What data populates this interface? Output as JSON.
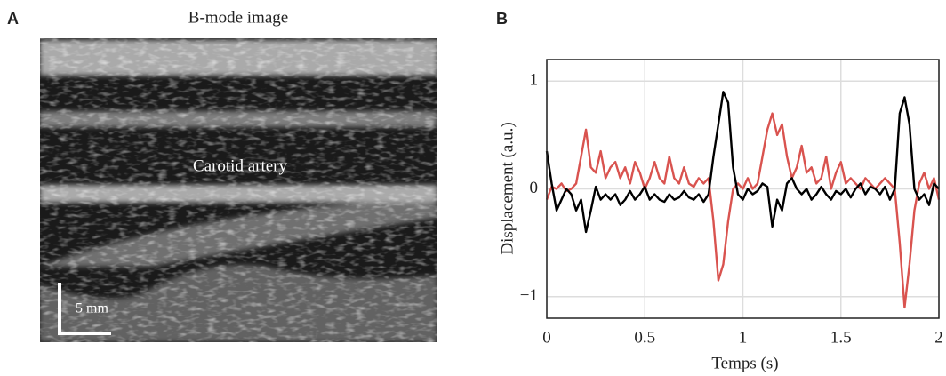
{
  "image_panel": {
    "label": "A",
    "title": "B-mode image",
    "annotation": "Carotid artery",
    "scale_bar": "5 mm"
  },
  "chart_data": {
    "type": "line",
    "panel_label": "B",
    "xlabel": "Temps (s)",
    "ylabel": "Displacement (a.u.)",
    "x": [
      0,
      0.025,
      0.05,
      0.075,
      0.1,
      0.125,
      0.15,
      0.175,
      0.2,
      0.225,
      0.25,
      0.275,
      0.3,
      0.325,
      0.35,
      0.375,
      0.4,
      0.425,
      0.45,
      0.475,
      0.5,
      0.525,
      0.55,
      0.575,
      0.6,
      0.625,
      0.65,
      0.675,
      0.7,
      0.725,
      0.75,
      0.775,
      0.8,
      0.825,
      0.85,
      0.875,
      0.9,
      0.925,
      0.95,
      0.975,
      1,
      1.025,
      1.05,
      1.075,
      1.1,
      1.125,
      1.15,
      1.175,
      1.2,
      1.225,
      1.25,
      1.275,
      1.3,
      1.325,
      1.35,
      1.375,
      1.4,
      1.425,
      1.45,
      1.475,
      1.5,
      1.525,
      1.55,
      1.575,
      1.6,
      1.625,
      1.65,
      1.675,
      1.7,
      1.725,
      1.75,
      1.775,
      1.8,
      1.825,
      1.85,
      1.875,
      1.9,
      1.925,
      1.95,
      1.975,
      2
    ],
    "series": [
      {
        "color": "#000000",
        "values": [
          0.35,
          0.05,
          -0.2,
          -0.1,
          0,
          -0.05,
          -0.2,
          -0.1,
          -0.4,
          -0.2,
          0.02,
          -0.1,
          -0.05,
          -0.1,
          -0.05,
          -0.15,
          -0.1,
          -0.02,
          -0.1,
          -0.05,
          0.02,
          -0.1,
          -0.05,
          -0.1,
          -0.12,
          -0.05,
          -0.1,
          -0.08,
          -0.02,
          -0.08,
          -0.1,
          -0.05,
          -0.12,
          -0.05,
          0.3,
          0.6,
          0.9,
          0.8,
          0.2,
          -0.05,
          -0.1,
          0,
          -0.05,
          -0.02,
          0.05,
          0.02,
          -0.35,
          -0.1,
          -0.2,
          0.05,
          0.1,
          0,
          -0.05,
          0,
          -0.1,
          -0.05,
          0.02,
          -0.05,
          -0.1,
          -0.02,
          -0.05,
          0,
          -0.08,
          0,
          0.05,
          -0.05,
          0.02,
          0,
          -0.05,
          0.02,
          -0.1,
          0,
          0.7,
          0.85,
          0.6,
          0,
          -0.1,
          -0.05,
          -0.15,
          0.05,
          0
        ]
      },
      {
        "color": "#d9534f",
        "values": [
          -0.1,
          0.02,
          0,
          0.05,
          -0.02,
          0,
          0.05,
          0.3,
          0.55,
          0.2,
          0.15,
          0.35,
          0.1,
          0.2,
          0.25,
          0.1,
          0.2,
          0.05,
          0.25,
          0.15,
          0,
          0.1,
          0.25,
          0.1,
          0.05,
          0.3,
          0.1,
          0.05,
          0.2,
          0.05,
          0.02,
          0.1,
          0.05,
          0.1,
          -0.3,
          -0.85,
          -0.7,
          -0.3,
          0,
          0.05,
          0,
          0.1,
          0,
          0.05,
          0.3,
          0.55,
          0.7,
          0.5,
          0.6,
          0.3,
          0.1,
          0.2,
          0.4,
          0.15,
          0.2,
          0.05,
          0.1,
          0.3,
          0,
          0.15,
          0.25,
          0.05,
          0.1,
          0.05,
          0,
          0.1,
          0.05,
          0,
          0.05,
          0.1,
          0.05,
          0,
          -0.5,
          -1.1,
          -0.7,
          -0.2,
          0.05,
          0.15,
          0,
          0.1,
          -0.1
        ]
      }
    ],
    "xlim": [
      0,
      2
    ],
    "xticks": [
      0,
      0.5,
      1,
      1.5,
      2
    ],
    "ylim": [
      -1.2,
      1.2
    ],
    "yticks": [
      {
        "value": -1,
        "label": "−1"
      },
      0,
      1
    ],
    "grid": true
  }
}
